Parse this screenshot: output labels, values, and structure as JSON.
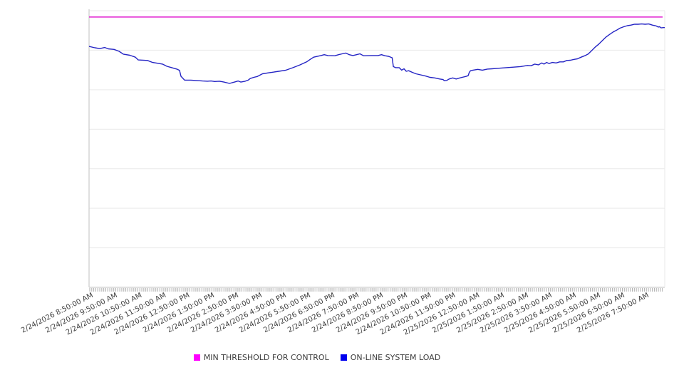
{
  "chart_data": {
    "type": "line",
    "title": "",
    "legend_position": "bottom",
    "y_axis": {
      "labels_visible": false,
      "ylim": [
        0,
        100
      ],
      "gridline_divisions": 7,
      "grid": true
    },
    "x_axis": {
      "hours_span": 23.74,
      "label_rotation_deg": -27,
      "minor_tick_interval_minutes": 5,
      "tick_labels": [
        "2/24/2026 8:50:00 AM",
        "2/24/2026 9:50:00 AM",
        "2/24/2026 10:50:00 AM",
        "2/24/2026 11:50:00 AM",
        "2/24/2026 12:50:00 PM",
        "2/24/2026 1:50:00 PM",
        "2/24/2026 2:50:00 PM",
        "2/24/2026 3:50:00 PM",
        "2/24/2026 4:50:00 PM",
        "2/24/2026 5:50:00 PM",
        "2/24/2026 6:50:00 PM",
        "2/24/2026 7:50:00 PM",
        "2/24/2026 8:50:00 PM",
        "2/24/2026 9:50:00 PM",
        "2/24/2026 10:50:00 PM",
        "2/24/2026 11:50:00 PM",
        "2/25/2026 12:50:00 AM",
        "2/25/2026 1:50:00 AM",
        "2/25/2026 2:50:00 AM",
        "2/25/2026 3:50:00 AM",
        "2/25/2026 4:50:00 AM",
        "2/25/2026 5:50:00 AM",
        "2/25/2026 6:50:00 AM",
        "2/25/2026 7:50:00 AM"
      ]
    },
    "series": [
      {
        "name": "MIN THRESHOLD FOR CONTROL",
        "type": "threshold-line",
        "color": "#e01fd0",
        "swatch_color": "#ff00ff",
        "value": 97.7
      },
      {
        "name": "ON-LINE SYSTEM LOAD",
        "type": "line",
        "color": "#2424c4",
        "swatch_color": "#0000ee",
        "points": [
          [
            0.0,
            87.1
          ],
          [
            0.24,
            86.6
          ],
          [
            0.44,
            86.3
          ],
          [
            0.65,
            86.7
          ],
          [
            0.79,
            86.2
          ],
          [
            1.03,
            86.0
          ],
          [
            1.24,
            85.3
          ],
          [
            1.41,
            84.3
          ],
          [
            1.68,
            83.9
          ],
          [
            1.91,
            83.2
          ],
          [
            2.03,
            82.2
          ],
          [
            2.41,
            82.0
          ],
          [
            2.62,
            81.3
          ],
          [
            2.82,
            81.0
          ],
          [
            3.03,
            80.7
          ],
          [
            3.21,
            79.9
          ],
          [
            3.41,
            79.4
          ],
          [
            3.62,
            78.9
          ],
          [
            3.73,
            78.4
          ],
          [
            3.79,
            76.3
          ],
          [
            3.94,
            74.9
          ],
          [
            4.2,
            74.9
          ],
          [
            4.68,
            74.6
          ],
          [
            4.88,
            74.5
          ],
          [
            5.03,
            74.6
          ],
          [
            5.18,
            74.4
          ],
          [
            5.38,
            74.5
          ],
          [
            5.56,
            74.2
          ],
          [
            5.79,
            73.7
          ],
          [
            6.0,
            74.2
          ],
          [
            6.15,
            74.6
          ],
          [
            6.26,
            74.2
          ],
          [
            6.44,
            74.5
          ],
          [
            6.56,
            74.9
          ],
          [
            6.65,
            75.5
          ],
          [
            6.79,
            75.9
          ],
          [
            6.94,
            76.2
          ],
          [
            7.15,
            77.2
          ],
          [
            7.44,
            77.6
          ],
          [
            7.62,
            77.8
          ],
          [
            7.82,
            78.1
          ],
          [
            8.12,
            78.5
          ],
          [
            8.41,
            79.4
          ],
          [
            8.7,
            80.4
          ],
          [
            8.97,
            81.5
          ],
          [
            9.12,
            82.4
          ],
          [
            9.26,
            83.2
          ],
          [
            9.56,
            83.8
          ],
          [
            9.7,
            84.1
          ],
          [
            9.85,
            83.8
          ],
          [
            10.14,
            83.7
          ],
          [
            10.29,
            84.1
          ],
          [
            10.44,
            84.4
          ],
          [
            10.59,
            84.7
          ],
          [
            10.73,
            84.1
          ],
          [
            10.88,
            83.8
          ],
          [
            11.03,
            84.1
          ],
          [
            11.17,
            84.4
          ],
          [
            11.32,
            83.7
          ],
          [
            11.62,
            83.8
          ],
          [
            11.91,
            83.8
          ],
          [
            12.06,
            84.1
          ],
          [
            12.2,
            83.7
          ],
          [
            12.35,
            83.5
          ],
          [
            12.5,
            83.0
          ],
          [
            12.55,
            79.8
          ],
          [
            12.64,
            79.4
          ],
          [
            12.79,
            79.4
          ],
          [
            12.89,
            78.5
          ],
          [
            12.99,
            79.0
          ],
          [
            13.08,
            78.1
          ],
          [
            13.18,
            78.3
          ],
          [
            13.33,
            77.7
          ],
          [
            13.48,
            77.2
          ],
          [
            13.67,
            76.8
          ],
          [
            13.87,
            76.4
          ],
          [
            14.06,
            75.9
          ],
          [
            14.26,
            75.7
          ],
          [
            14.46,
            75.3
          ],
          [
            14.6,
            75.1
          ],
          [
            14.65,
            74.7
          ],
          [
            14.75,
            74.8
          ],
          [
            14.85,
            75.3
          ],
          [
            15.0,
            75.7
          ],
          [
            15.14,
            75.3
          ],
          [
            15.29,
            75.7
          ],
          [
            15.38,
            75.9
          ],
          [
            15.53,
            76.2
          ],
          [
            15.63,
            76.5
          ],
          [
            15.68,
            77.7
          ],
          [
            15.73,
            78.3
          ],
          [
            15.83,
            78.5
          ],
          [
            16.03,
            78.8
          ],
          [
            16.22,
            78.5
          ],
          [
            16.42,
            78.9
          ],
          [
            16.61,
            79.0
          ],
          [
            16.91,
            79.2
          ],
          [
            17.2,
            79.4
          ],
          [
            17.5,
            79.6
          ],
          [
            17.79,
            79.8
          ],
          [
            18.08,
            80.2
          ],
          [
            18.23,
            80.1
          ],
          [
            18.38,
            80.7
          ],
          [
            18.53,
            80.4
          ],
          [
            18.67,
            81.1
          ],
          [
            18.76,
            80.7
          ],
          [
            18.87,
            81.3
          ],
          [
            18.97,
            80.9
          ],
          [
            19.11,
            81.3
          ],
          [
            19.26,
            81.1
          ],
          [
            19.41,
            81.5
          ],
          [
            19.56,
            81.5
          ],
          [
            19.7,
            82.0
          ],
          [
            19.85,
            82.1
          ],
          [
            20.0,
            82.4
          ],
          [
            20.14,
            82.6
          ],
          [
            20.29,
            83.2
          ],
          [
            20.44,
            83.7
          ],
          [
            20.58,
            84.3
          ],
          [
            20.73,
            85.6
          ],
          [
            20.88,
            86.9
          ],
          [
            21.02,
            87.9
          ],
          [
            21.17,
            89.2
          ],
          [
            21.32,
            90.5
          ],
          [
            21.46,
            91.4
          ],
          [
            21.61,
            92.3
          ],
          [
            21.76,
            93.0
          ],
          [
            21.9,
            93.7
          ],
          [
            22.05,
            94.2
          ],
          [
            22.2,
            94.6
          ],
          [
            22.35,
            94.8
          ],
          [
            22.49,
            95.1
          ],
          [
            22.64,
            95.1
          ],
          [
            22.79,
            95.2
          ],
          [
            22.93,
            95.1
          ],
          [
            23.08,
            95.2
          ],
          [
            23.23,
            94.8
          ],
          [
            23.38,
            94.5
          ],
          [
            23.47,
            94.1
          ],
          [
            23.53,
            94.2
          ],
          [
            23.59,
            93.8
          ],
          [
            23.68,
            93.9
          ],
          [
            23.74,
            93.9
          ]
        ]
      }
    ]
  }
}
